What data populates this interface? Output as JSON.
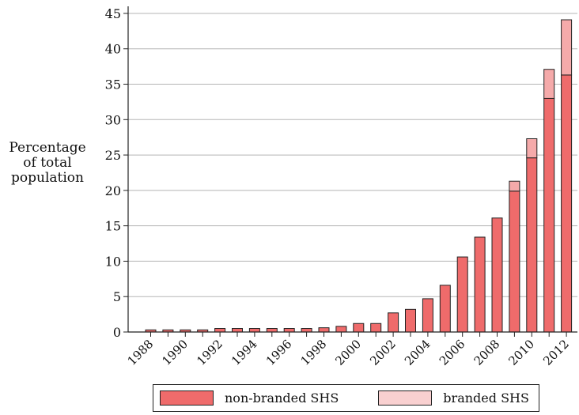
{
  "chart_data": {
    "type": "bar",
    "stacked": true,
    "ylabel": [
      "Percentage",
      "of total",
      "population"
    ],
    "ylim": [
      0,
      46
    ],
    "yticks": [
      0,
      5,
      10,
      15,
      20,
      25,
      30,
      35,
      40,
      45
    ],
    "categories": [
      "1988",
      "1989",
      "1990",
      "1991",
      "1992",
      "1993",
      "1994",
      "1995",
      "1996",
      "1997",
      "1998",
      "1999",
      "2000",
      "2001",
      "2002",
      "2003",
      "2004",
      "2005",
      "2006",
      "2007",
      "2008",
      "2009",
      "2010",
      "2011",
      "2012"
    ],
    "tick_labels": [
      "1988",
      "1990",
      "1992",
      "1994",
      "1996",
      "1998",
      "2000",
      "2002",
      "2004",
      "2006",
      "2008",
      "2010",
      "2012"
    ],
    "series": [
      {
        "name": "non-branded SHS",
        "color": "#ef6b6b",
        "values": [
          0.3,
          0.3,
          0.3,
          0.3,
          0.5,
          0.5,
          0.5,
          0.5,
          0.5,
          0.5,
          0.6,
          0.8,
          1.2,
          1.2,
          2.7,
          3.2,
          4.7,
          6.6,
          10.6,
          13.4,
          16.1,
          19.9,
          24.6,
          33.0,
          36.3
        ]
      },
      {
        "name": "branded SHS",
        "color": "#f5aaaa",
        "values": [
          0,
          0,
          0,
          0,
          0,
          0,
          0,
          0,
          0,
          0,
          0,
          0,
          0,
          0,
          0,
          0,
          0,
          0,
          0,
          0,
          0,
          1.4,
          2.7,
          4.1,
          7.8
        ]
      }
    ],
    "grid": "horizontal",
    "legend": "bottom"
  }
}
